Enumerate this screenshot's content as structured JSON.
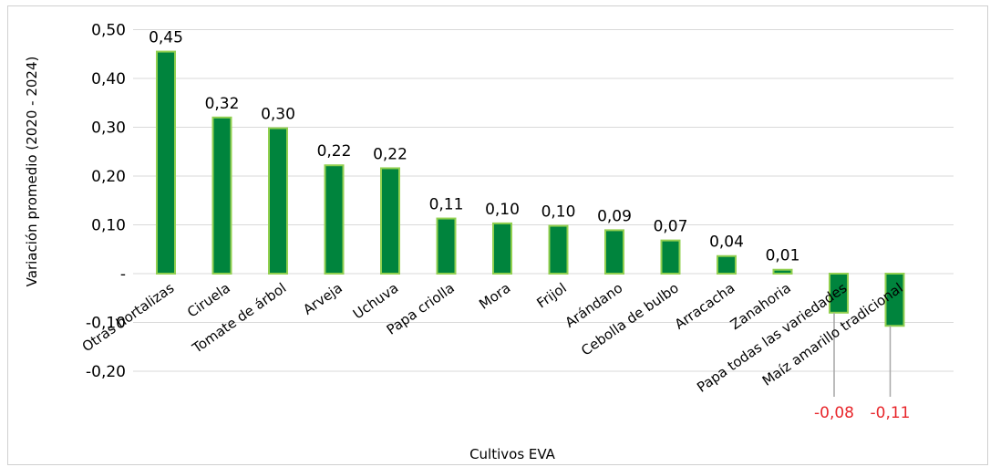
{
  "chart_data": {
    "type": "bar",
    "title": "",
    "xlabel": "Cultivos EVA",
    "ylabel": "Variación promedio (2020 - 2024)",
    "ylim": [
      -0.2,
      0.5
    ],
    "yticks": [
      0.5,
      0.4,
      0.3,
      0.2,
      0.1,
      0,
      -0.1,
      -0.2
    ],
    "ytick_labels": [
      "0,50",
      "0,40",
      "0,30",
      "0,20",
      "0,10",
      "-",
      "-0,10",
      "-0,20"
    ],
    "categories": [
      "Otras hortalizas",
      "Ciruela",
      "Tomate de árbol",
      "Arveja",
      "Uchuva",
      "Papa criolla",
      "Mora",
      "Frijol",
      "Arándano",
      "Cebolla de bulbo",
      "Arracacha",
      "Zanahoria",
      "Papa todas las variedades",
      "Maíz amarillo tradicional"
    ],
    "values": [
      0.455,
      0.32,
      0.298,
      0.222,
      0.216,
      0.113,
      0.103,
      0.098,
      0.089,
      0.068,
      0.036,
      0.008,
      -0.08,
      -0.107
    ],
    "value_labels": [
      "0,45",
      "0,32",
      "0,30",
      "0,22",
      "0,22",
      "0,11",
      "0,10",
      "0,10",
      "0,09",
      "0,07",
      "0,04",
      "0,01",
      "-0,08",
      "-0,11"
    ],
    "grid": true,
    "legend": "none",
    "colors": {
      "bar_fill": "#00843d",
      "bar_stroke": "#92d050",
      "negative_label": "#e8262b",
      "title": "#00a14b",
      "grid": "#d9d9d9"
    }
  }
}
